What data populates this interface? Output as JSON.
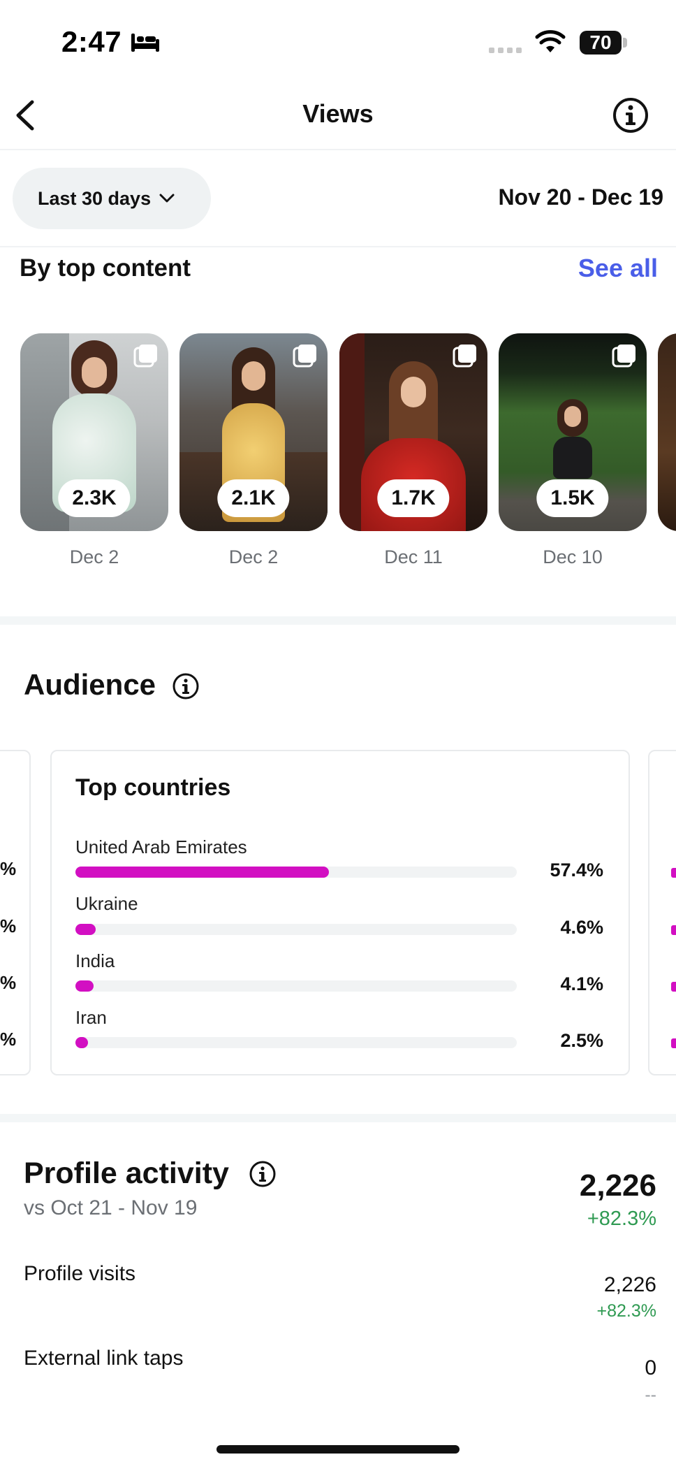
{
  "status_bar": {
    "time": "2:47",
    "battery": "70"
  },
  "header": {
    "title": "Views"
  },
  "filter": {
    "range_label": "Last 30 days",
    "date_range": "Nov 20 - Dec 19"
  },
  "top_content": {
    "title": "By top content",
    "see_all": "See all",
    "items": [
      {
        "count": "2.3K",
        "date": "Dec 2"
      },
      {
        "count": "2.1K",
        "date": "Dec 2"
      },
      {
        "count": "1.7K",
        "date": "Dec 11"
      },
      {
        "count": "1.5K",
        "date": "Dec 10"
      }
    ]
  },
  "audience": {
    "title": "Audience",
    "card_title": "Top countries",
    "countries": [
      {
        "name": "United Arab Emirates",
        "pct": "57.4%",
        "value": 57.4
      },
      {
        "name": "Ukraine",
        "pct": "4.6%",
        "value": 4.6
      },
      {
        "name": "India",
        "pct": "4.1%",
        "value": 4.1
      },
      {
        "name": "Iran",
        "pct": "2.5%",
        "value": 2.5
      }
    ],
    "colors": {
      "bar": "#d20fc2",
      "track": "#f1f3f4"
    }
  },
  "profile_activity": {
    "title": "Profile activity",
    "compare": "vs Oct 21 - Nov 19",
    "total": "2,226",
    "total_change": "+82.3%",
    "rows": [
      {
        "label": "Profile visits",
        "value": "2,226",
        "change": "+82.3%"
      },
      {
        "label": "External link taps",
        "value": "0",
        "change": "--"
      }
    ]
  },
  "colors": {
    "accent": "#4a5ee8",
    "positive": "#2f9a52"
  }
}
